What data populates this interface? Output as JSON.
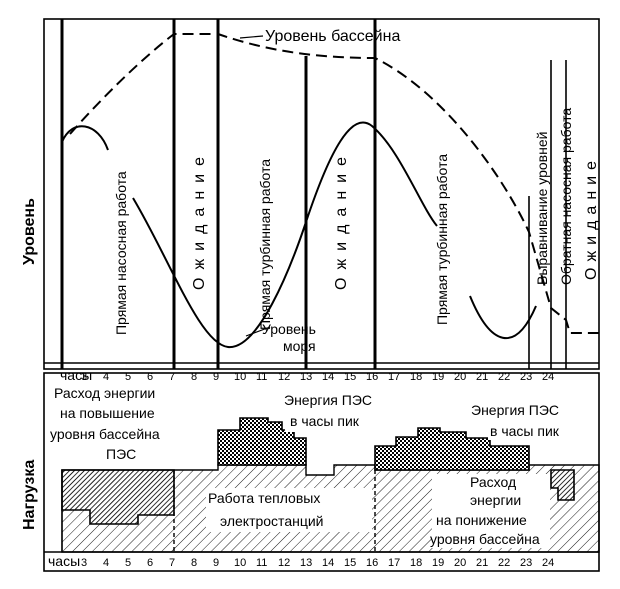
{
  "upper": {
    "ylabel": "Уровень",
    "hours_label": "часы",
    "hour_ticks": [
      "3",
      "4",
      "5",
      "6",
      "7",
      "8",
      "9",
      "10",
      "11",
      "12",
      "13",
      "14",
      "15",
      "16",
      "17",
      "18",
      "19",
      "20",
      "21",
      "22",
      "23",
      "24"
    ],
    "basin_level_label": "Уровень бассейна",
    "sea_level_label_1": "Уровень",
    "sea_level_label_2": "моря",
    "phases": {
      "pump_direct": "Прямая насосная работа",
      "wait_1": "Ожидание",
      "turbine_direct_1": "Прямая турбинная работа",
      "wait_2": "Ожидание",
      "turbine_direct_2": "Прямая турбинная работа",
      "equalize": "Выравнивание уровней",
      "pump_reverse": "Обратная насосная работа",
      "wait_3": "Ожидание"
    }
  },
  "lower": {
    "ylabel": "Нагрузка",
    "hours_label": "часы",
    "hour_ticks": [
      "3",
      "4",
      "5",
      "6",
      "7",
      "8",
      "9",
      "10",
      "11",
      "12",
      "13",
      "14",
      "15",
      "16",
      "17",
      "18",
      "19",
      "20",
      "21",
      "22",
      "23",
      "24"
    ],
    "raise_cost_1": "Расход энергии",
    "raise_cost_2": "на повышение",
    "raise_cost_3": "уровня бассейна",
    "raise_cost_4": "ПЭС",
    "peak_1a": "Энергия ПЭС",
    "peak_1b": "в часы пик",
    "peak_2a": "Энергия ПЭС",
    "peak_2b": "в часы пик",
    "thermal_1": "Работа тепловых",
    "thermal_2": "электростанций",
    "lower_cost_1": "Расход",
    "lower_cost_2": "энергии",
    "lower_cost_3": "на понижение",
    "lower_cost_4": "уровня бассейна"
  }
}
